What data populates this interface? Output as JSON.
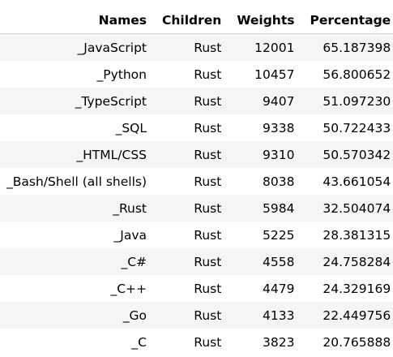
{
  "table": {
    "columns": [
      "Names",
      "Children",
      "Weights",
      "Percentage"
    ],
    "rows": [
      {
        "name": "_JavaScript",
        "children": "Rust",
        "weight": "12001",
        "percentage": "65.187398"
      },
      {
        "name": "_Python",
        "children": "Rust",
        "weight": "10457",
        "percentage": "56.800652"
      },
      {
        "name": "_TypeScript",
        "children": "Rust",
        "weight": "9407",
        "percentage": "51.097230"
      },
      {
        "name": "_SQL",
        "children": "Rust",
        "weight": "9338",
        "percentage": "50.722433"
      },
      {
        "name": "_HTML/CSS",
        "children": "Rust",
        "weight": "9310",
        "percentage": "50.570342"
      },
      {
        "name": "_Bash/Shell (all shells)",
        "children": "Rust",
        "weight": "8038",
        "percentage": "43.661054"
      },
      {
        "name": "_Rust",
        "children": "Rust",
        "weight": "5984",
        "percentage": "32.504074"
      },
      {
        "name": "_Java",
        "children": "Rust",
        "weight": "5225",
        "percentage": "28.381315"
      },
      {
        "name": "_C#",
        "children": "Rust",
        "weight": "4558",
        "percentage": "24.758284"
      },
      {
        "name": "_C++",
        "children": "Rust",
        "weight": "4479",
        "percentage": "24.329169"
      },
      {
        "name": "_Go",
        "children": "Rust",
        "weight": "4133",
        "percentage": "22.449756"
      },
      {
        "name": "_C",
        "children": "Rust",
        "weight": "3823",
        "percentage": "20.765888"
      }
    ]
  }
}
